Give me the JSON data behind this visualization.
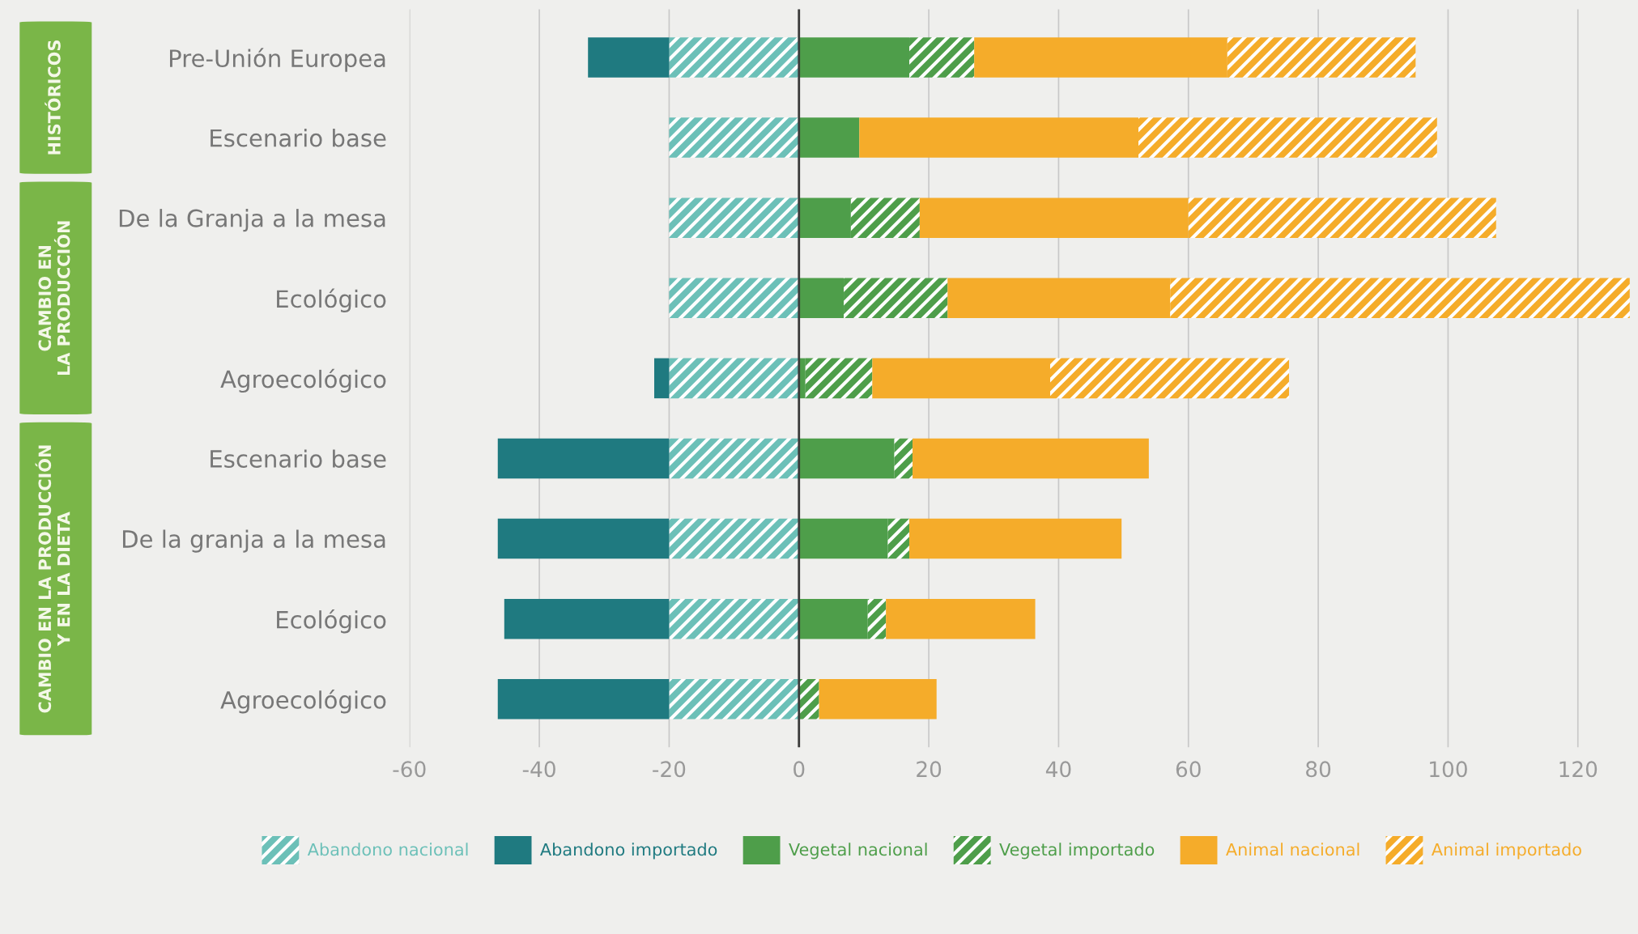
{
  "chart_data": {
    "type": "bar",
    "orientation": "horizontal",
    "stacked": true,
    "categories": [
      "Pre-Unión Europea",
      "Escenario base",
      "De la Granja a la mesa",
      "Ecológico",
      "Agroecológico",
      "Escenario base",
      "De la granja a la mesa",
      "Ecológico",
      "Agroecológico"
    ],
    "series": [
      {
        "name": "Abandono nacional",
        "color": "#6cc0b8",
        "values": [
          -20,
          -20,
          -20,
          -20,
          -20,
          -20,
          -20,
          -20,
          -20
        ]
      },
      {
        "name": "Abandono importado",
        "color": "#1f7a80",
        "values": [
          -12.5,
          0,
          0,
          0,
          -2.3,
          -26.4,
          -26.4,
          -25.4,
          -26.4
        ]
      },
      {
        "name": "Vegetal nacional",
        "color": "#4e9e4a",
        "values": [
          17,
          9.3,
          8,
          6.9,
          1,
          14.7,
          13.7,
          10.6,
          0
        ]
      },
      {
        "name": "Vegetal importado",
        "color": "#4e9e4a",
        "values": [
          10,
          0,
          10.6,
          16,
          10.3,
          2.8,
          3.3,
          2.8,
          3.1
        ]
      },
      {
        "name": "Animal nacional",
        "color": "#f5ac2a",
        "values": [
          39,
          43,
          41.4,
          34.3,
          27.4,
          36.4,
          32.7,
          23,
          18.1
        ]
      },
      {
        "name": "Animal importado",
        "color": "#f5ac2a",
        "values": [
          29,
          46,
          47.4,
          70.8,
          36.8,
          0,
          0,
          0,
          0
        ]
      }
    ],
    "xlim": [
      -60,
      128
    ],
    "xticks": [
      -60,
      -40,
      -20,
      0,
      20,
      40,
      60,
      80,
      100,
      120
    ],
    "grid": "x",
    "legend": "bottom",
    "ref_lines": [
      {
        "axis": "x",
        "value": 0,
        "color": "#3a3a3a"
      }
    ],
    "annotations": [
      "HISTÓRICOS",
      "CAMBIO EN\nLA PRODUCCIÓN",
      "CAMBIO EN LA PRODUCCIÓN\nY EN LA DIETA"
    ]
  }
}
